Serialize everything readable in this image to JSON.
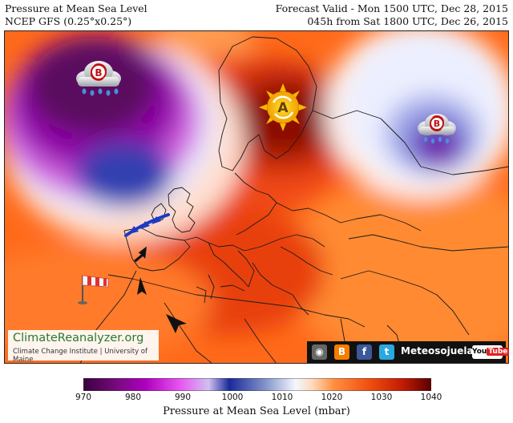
{
  "header": {
    "title": "Pressure at Mean Sea Level",
    "model": "NCEP GFS (0.25°x0.25°)",
    "valid": "Forecast Valid - Mon 1500 UTC, Dec 28, 2015",
    "lead": "045h from Sat 1800 UTC, Dec 26, 2015"
  },
  "map": {
    "pressure_centers": [
      {
        "label": "B",
        "meaning": "low",
        "icon": "storm-cloud-icon"
      },
      {
        "label": "A",
        "meaning": "high",
        "icon": "sun-icon"
      },
      {
        "label": "B",
        "meaning": "low",
        "icon": "storm-cloud-icon"
      }
    ],
    "symbols": [
      "cold-front-icon",
      "windsock-icon",
      "wind-arrow-icon"
    ]
  },
  "colorbar": {
    "ticks": [
      "970",
      "980",
      "990",
      "1000",
      "1010",
      "1020",
      "1030",
      "1040"
    ],
    "title": "Pressure at Mean Sea Level (mbar)",
    "colors": [
      "#5a0a5e",
      "#a000b0",
      "#e040f0",
      "#2030a0",
      "#f0f4ff",
      "#ff8040",
      "#e03010",
      "#700000"
    ]
  },
  "branding": {
    "site_name": "ClimateReanalyzer.org",
    "site_sub": "Climate Change Institute | University of Maine",
    "social_label": "Meteosojuela",
    "youtube_you": "You",
    "youtube_tube": "Tube"
  }
}
